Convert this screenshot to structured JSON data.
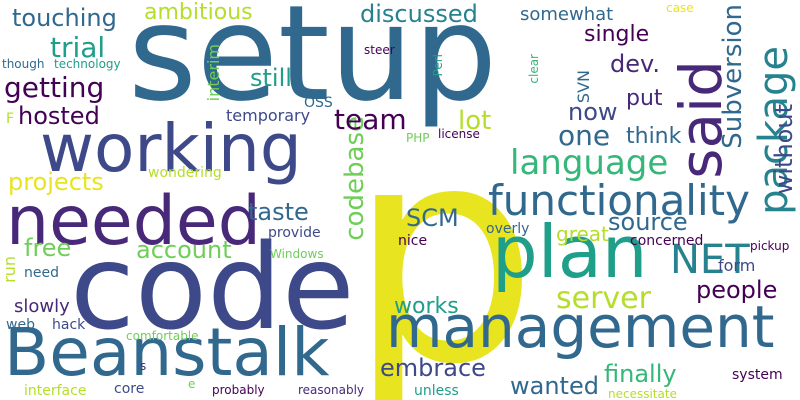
{
  "palette": {
    "yellow": "#e8e420",
    "lime": "#b5de2b",
    "green": "#6ece58",
    "teal_green": "#35b779",
    "teal": "#1f9e89",
    "blue_teal": "#26828e",
    "blue": "#31688e",
    "indigo": "#3e4989",
    "purple": "#482878",
    "dark_purple": "#440154"
  },
  "words": [
    "setup",
    "p",
    "code",
    "needed",
    "working",
    "Beanstalk",
    "management",
    "plan",
    "said",
    "functionality",
    "language",
    "package",
    "Subversion",
    "NET",
    "server",
    "SCM",
    "codebase",
    "one",
    "team",
    "touching",
    "ambitious",
    "discussed",
    "somewhat",
    "case",
    "trial",
    "single",
    "getting",
    "still",
    "dev.",
    "hosted",
    "now",
    "put",
    "lot",
    "think",
    "source",
    "projects",
    "taste",
    "account",
    "free",
    "great",
    "people",
    "works",
    "embrace",
    "finally",
    "wanted",
    "without",
    "interim",
    "though",
    "technology",
    "steer",
    "clear",
    "Perl",
    "SVN",
    "OSS",
    "temporary",
    "F",
    "PHP",
    "license",
    "wondering",
    "provide",
    "concerned",
    "overly",
    "Windows",
    "run",
    "nice",
    "need",
    "form",
    "pickup",
    "slowly",
    "web",
    "hack",
    "comfortable",
    "s",
    "interface",
    "core",
    "e",
    "probably",
    "reasonably",
    "unless",
    "necessitate",
    "system"
  ]
}
